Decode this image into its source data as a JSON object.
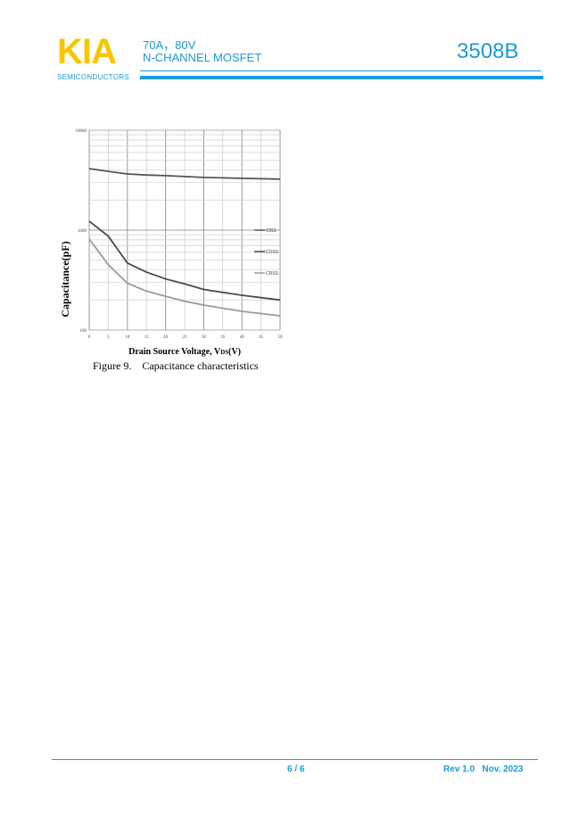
{
  "header": {
    "logo": "KIA",
    "logo_sub": "SEMICONDUCTORS",
    "line1": "70A，80V",
    "line2": "N-CHANNEL MOSFET",
    "part_number": "3508B"
  },
  "footer": {
    "page": "6 / 6",
    "revision": "Rev 1.0   Nov. 2023"
  },
  "colors": {
    "brand_blue": "#1a9ad6",
    "logo_yellow": "#f7c600"
  },
  "chart_data": {
    "type": "line",
    "title": "",
    "caption": "Figure 9.    Capacitance characteristics",
    "xlabel": "Drain Source Voltage, V",
    "xlabel_sub": "DS",
    "xlabel_unit": "(V)",
    "ylabel": "Capacitance(pF)",
    "xlim": [
      0,
      50
    ],
    "ylim": [
      100,
      10000
    ],
    "yscale": "log",
    "grid": true,
    "legend": "right",
    "x_ticks": [
      "0",
      "5",
      "10",
      "15",
      "20",
      "25",
      "30",
      "35",
      "40",
      "45",
      "50"
    ],
    "y_ticks": [
      "100",
      "1000",
      "10000"
    ],
    "x": [
      0,
      5,
      10,
      15,
      20,
      25,
      30,
      40,
      50
    ],
    "series": [
      {
        "name": "CISS",
        "color": "#555555",
        "values": [
          4130,
          3880,
          3650,
          3560,
          3510,
          3440,
          3370,
          3300,
          3240
        ]
      },
      {
        "name": "COSS",
        "color": "#4a4a4a",
        "values": [
          1230,
          870,
          468,
          380,
          325,
          290,
          255,
          223,
          200
        ]
      },
      {
        "name": "CRSS",
        "color": "#9a9a9a",
        "values": [
          815,
          450,
          294,
          245,
          218,
          194,
          178,
          154,
          139
        ]
      }
    ]
  }
}
